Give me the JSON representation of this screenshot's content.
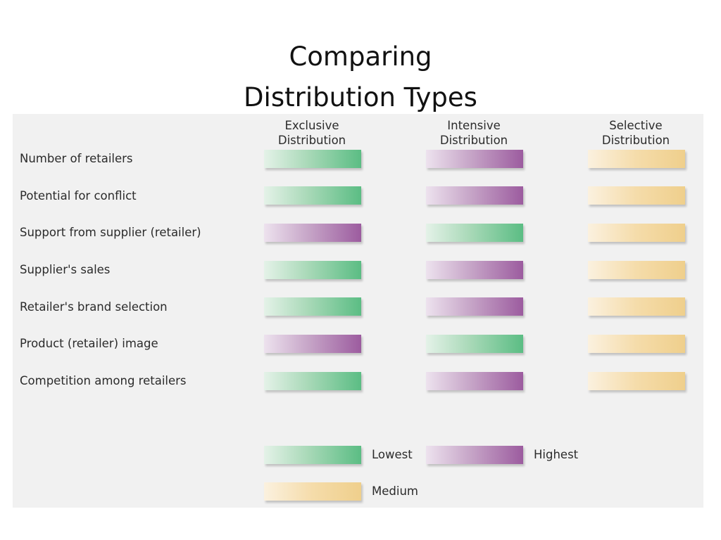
{
  "title": {
    "line1": "Comparing",
    "line2": "Distribution Types"
  },
  "columns": [
    {
      "line1": "Exclusive",
      "line2": "Distribution"
    },
    {
      "line1": "Intensive",
      "line2": "Distribution"
    },
    {
      "line1": "Selective",
      "line2": "Distribution"
    }
  ],
  "rows": [
    {
      "label": "Number of retailers",
      "levels": [
        "Lowest",
        "Highest",
        "Medium"
      ]
    },
    {
      "label": "Potential for conflict",
      "levels": [
        "Lowest",
        "Highest",
        "Medium"
      ]
    },
    {
      "label": "Support from supplier (retailer)",
      "levels": [
        "Highest",
        "Lowest",
        "Medium"
      ]
    },
    {
      "label": "Supplier's sales",
      "levels": [
        "Lowest",
        "Highest",
        "Medium"
      ]
    },
    {
      "label": "Retailer's brand selection",
      "levels": [
        "Lowest",
        "Highest",
        "Medium"
      ]
    },
    {
      "label": "Product (retailer) image",
      "levels": [
        "Highest",
        "Lowest",
        "Medium"
      ]
    },
    {
      "label": "Competition among retailers",
      "levels": [
        "Lowest",
        "Highest",
        "Medium"
      ]
    }
  ],
  "legend": {
    "lowest": "Lowest",
    "highest": "Highest",
    "medium": "Medium"
  },
  "colors": {
    "lowest": "#5bbd84",
    "highest": "#9c5c9f",
    "medium": "#efcf8c",
    "panel": "#f1f1f1"
  }
}
